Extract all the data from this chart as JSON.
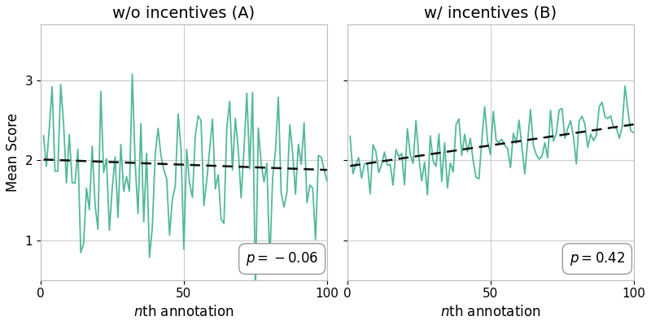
{
  "title_A": "w/o incentives (A)",
  "title_B": "w/ incentives (B)",
  "ylabel": "Mean Score",
  "annotation_A": "p = −0.06",
  "annotation_B": "p = 0.42",
  "line_color": "#52b89a",
  "trend_color": "#111111",
  "background_color": "#ffffff",
  "grid_color": "#cccccc",
  "xlim": [
    0,
    100
  ],
  "ylim": [
    0.5,
    3.7
  ],
  "yticks": [
    1,
    2,
    3
  ],
  "xticks": [
    0,
    50,
    100
  ],
  "n_points": 100,
  "trend_A_start": 2.01,
  "trend_A_end": 1.88,
  "trend_B_start": 1.93,
  "trend_B_end": 2.45,
  "noise_A": 0.6,
  "noise_B": 0.22,
  "title_fontsize": 14,
  "label_fontsize": 12,
  "tick_fontsize": 11,
  "annot_fontsize": 12,
  "line_width": 1.3,
  "trend_linewidth": 1.8
}
